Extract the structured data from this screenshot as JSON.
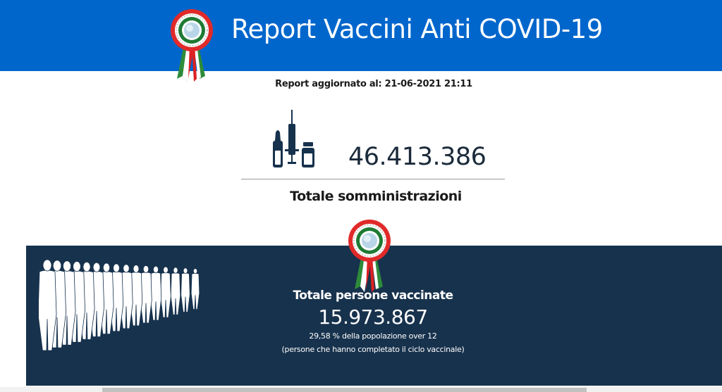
{
  "header": {
    "title": "Report Vaccini Anti COVID-19",
    "logo_icon": "italian-rosette-icon",
    "background": "#0066cc"
  },
  "report": {
    "updated_label": "Report aggiornato al: 21-06-2021 21:11"
  },
  "administrations": {
    "icon": "vaccine-syringe-vials-icon",
    "total": "46.413.386",
    "label": "Totale somministrazioni"
  },
  "vaccinated": {
    "panel_color": "#17324d",
    "icon": "people-queue-icon",
    "title": "Totale persone vaccinate",
    "total": "15.973.867",
    "percentage_text": "29,58 % della popolazione over 12",
    "note": "(persone che hanno completato il ciclo vaccinale)"
  }
}
